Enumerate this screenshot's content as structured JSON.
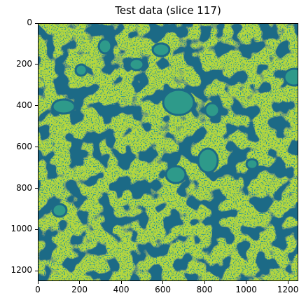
{
  "figure": {
    "title": "Test data (slice 117)"
  },
  "chart_data": {
    "type": "heatmap",
    "title": "Test data (slice 117)",
    "xlabel": "",
    "ylabel": "",
    "xlim": [
      0,
      1250
    ],
    "ylim": [
      1250,
      0
    ],
    "x_ticks": [
      "0",
      "200",
      "400",
      "600",
      "800",
      "1000",
      "1200"
    ],
    "y_ticks": [
      "0",
      "200",
      "400",
      "600",
      "800",
      "1000",
      "1200"
    ],
    "colormap_colors": {
      "membrane": "#1d6a86",
      "mid": "#2e9a8a",
      "cytoplasm": "#b6d83a",
      "bright": "#d8e43a"
    }
  }
}
